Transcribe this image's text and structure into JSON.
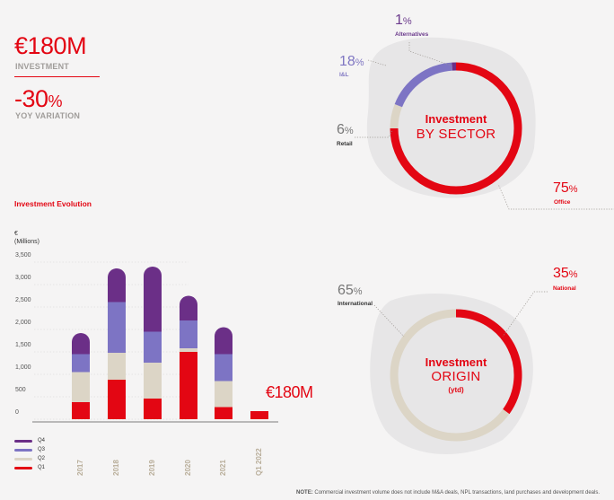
{
  "kpis": {
    "investment_value": "€180M",
    "investment_label": "INVESTMENT",
    "variation_value": "-30",
    "variation_pct": "%",
    "variation_label": "YOY VARIATION"
  },
  "colors": {
    "q4": "#6b2f87",
    "q3": "#7d74c4",
    "q2": "#dcd5c6",
    "q1": "#e30613",
    "grey_blob": "#e7e6e7"
  },
  "chart_data": [
    {
      "type": "bar",
      "stacked": true,
      "title": "Investment Evolution",
      "ylabel": "€",
      "yunit": "(Millions)",
      "ylim": [
        0,
        3500
      ],
      "yticks": [
        "3,500",
        "3,000",
        "2,500",
        "2,000",
        "1,500",
        "1,000",
        "500",
        "0"
      ],
      "categories": [
        "2017",
        "2018",
        "2019",
        "2020",
        "2021",
        "Q1 2022"
      ],
      "series": [
        {
          "name": "Q1",
          "values": [
            380,
            880,
            460,
            1500,
            270,
            180
          ]
        },
        {
          "name": "Q2",
          "values": [
            670,
            600,
            800,
            80,
            580,
            0
          ]
        },
        {
          "name": "Q3",
          "values": [
            400,
            1130,
            690,
            620,
            600,
            0
          ]
        },
        {
          "name": "Q4",
          "values": [
            470,
            750,
            1450,
            550,
            600,
            0
          ]
        }
      ],
      "annotation": "€180M",
      "legend": [
        "Q4",
        "Q3",
        "Q2",
        "Q1"
      ],
      "legend_position": "bottom-left"
    },
    {
      "type": "pie",
      "donut": true,
      "title_bold": "Investment",
      "title_thin": "BY SECTOR",
      "slices": [
        {
          "label": "Office",
          "value": 75,
          "color": "#e30613"
        },
        {
          "label": "Retail",
          "value": 6,
          "color": "#dcd5c6"
        },
        {
          "label": "I&L",
          "value": 18,
          "color": "#7d74c4"
        },
        {
          "label": "Alternatives",
          "value": 1,
          "color": "#6b2f87"
        }
      ]
    },
    {
      "type": "pie",
      "donut": true,
      "title_bold": "Investment",
      "title_thin": "ORIGIN",
      "subtitle": "(ytd)",
      "slices": [
        {
          "label": "National",
          "value": 35,
          "color": "#e30613"
        },
        {
          "label": "International",
          "value": 65,
          "color": "#dcd5c6"
        }
      ]
    }
  ],
  "labels": {
    "alt_num": "1",
    "il_num": "18",
    "retail_num": "6",
    "office_num": "75",
    "international_num": "65",
    "national_num": "35",
    "pct": "%"
  },
  "note": {
    "prefix": "NOTE:",
    "text": " Commercial investment volume does not include M&A deals, NPL transactions, land purchases and development deals."
  }
}
